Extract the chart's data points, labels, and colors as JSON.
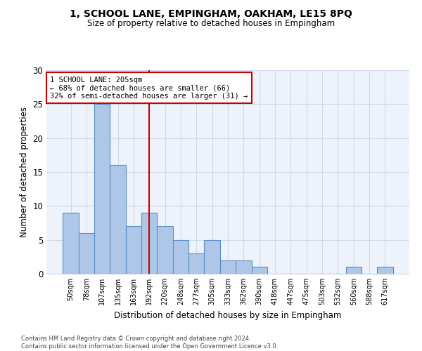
{
  "title": "1, SCHOOL LANE, EMPINGHAM, OAKHAM, LE15 8PQ",
  "subtitle": "Size of property relative to detached houses in Empingham",
  "xlabel": "Distribution of detached houses by size in Empingham",
  "ylabel": "Number of detached properties",
  "bar_labels": [
    "50sqm",
    "78sqm",
    "107sqm",
    "135sqm",
    "163sqm",
    "192sqm",
    "220sqm",
    "248sqm",
    "277sqm",
    "305sqm",
    "333sqm",
    "362sqm",
    "390sqm",
    "418sqm",
    "447sqm",
    "475sqm",
    "503sqm",
    "532sqm",
    "560sqm",
    "588sqm",
    "617sqm"
  ],
  "bar_values": [
    9,
    6,
    25,
    16,
    7,
    9,
    7,
    5,
    3,
    5,
    2,
    2,
    1,
    0,
    0,
    0,
    0,
    0,
    1,
    0,
    1
  ],
  "bar_color": "#aec6e8",
  "bar_edge_color": "#5a8fc2",
  "vline_color": "#cc0000",
  "annotation_text": "1 SCHOOL LANE: 205sqm\n← 68% of detached houses are smaller (66)\n32% of semi-detached houses are larger (31) →",
  "annotation_box_color": "#cc0000",
  "ylim": [
    0,
    30
  ],
  "yticks": [
    0,
    5,
    10,
    15,
    20,
    25,
    30
  ],
  "grid_color": "#d0d8e8",
  "background_color": "#eef2fa",
  "footer_line1": "Contains HM Land Registry data © Crown copyright and database right 2024.",
  "footer_line2": "Contains public sector information licensed under the Open Government Licence v3.0."
}
